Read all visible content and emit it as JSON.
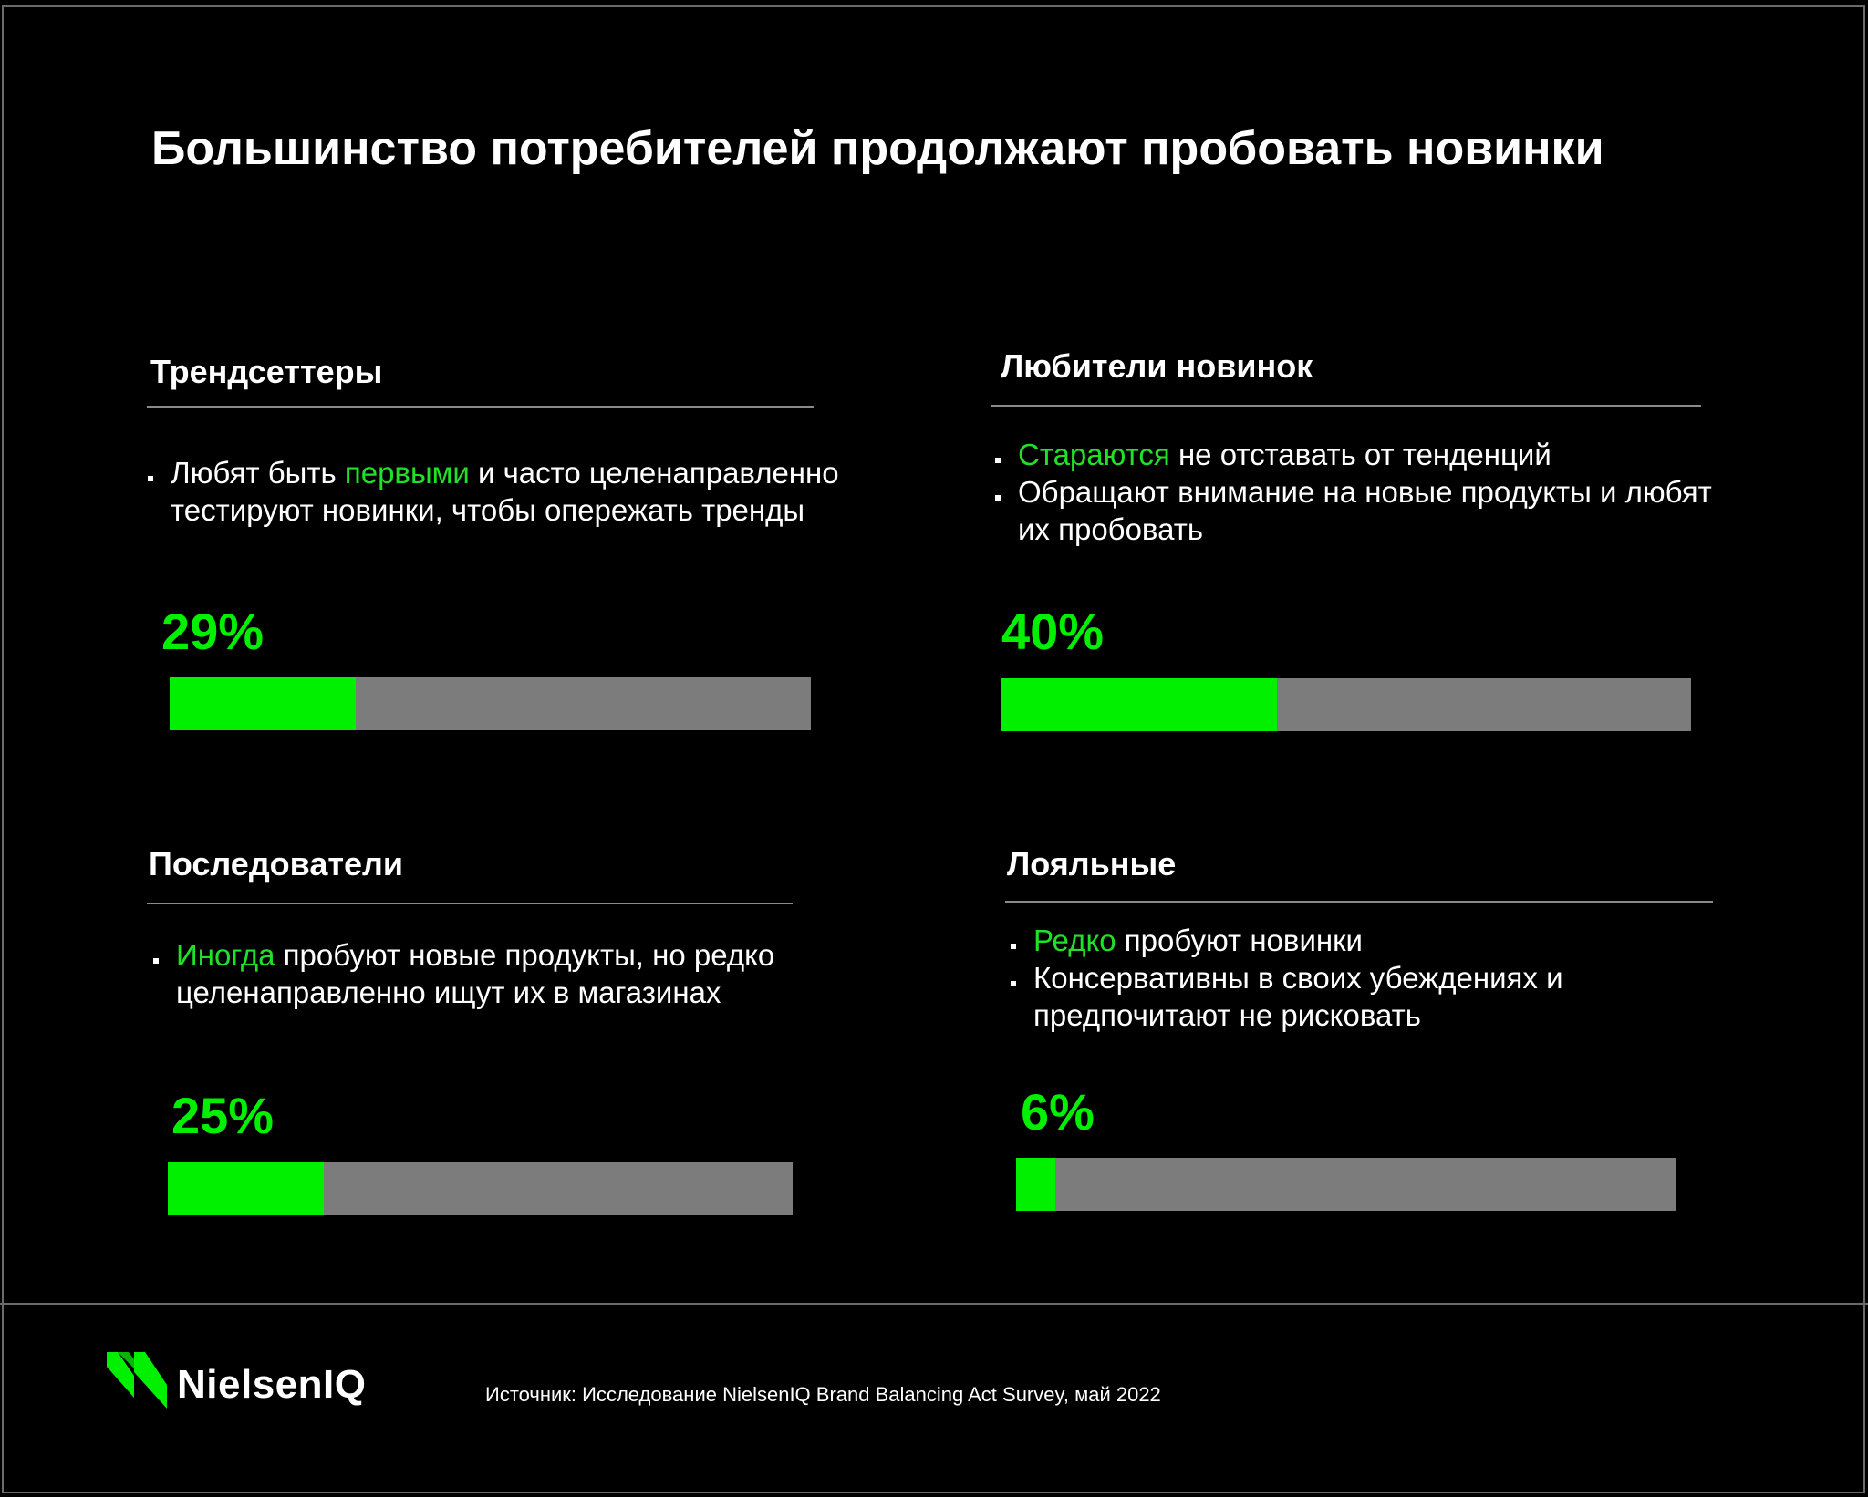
{
  "title": "Большинство потребителей продолжают пробовать новинки",
  "colors": {
    "accent": "#00f000",
    "track": "#7c7c7c",
    "background": "#000000"
  },
  "segments": [
    {
      "heading": "Трендсеттеры",
      "bullets": [
        {
          "pre": "",
          "highlight": "",
          "lead": "Любят быть ",
          "accent": "первыми",
          "post": " и часто целенаправленно тестируют новинки, чтобы опережать тренды"
        }
      ],
      "percent_label": "29%",
      "share": 0.29
    },
    {
      "heading": "Любители новинок",
      "bullets": [
        {
          "lead": "",
          "accent": "Стараются",
          "post": " не отставать от тенденций"
        },
        {
          "lead": "Обращают внимание на новые продукты и любят их пробовать",
          "accent": "",
          "post": ""
        }
      ],
      "percent_label": "40%",
      "share": 0.4
    },
    {
      "heading": "Последователи",
      "bullets": [
        {
          "lead": "",
          "accent": "Иногда",
          "post": " пробуют новые продукты, но редко целенаправленно ищут их в магазинах"
        }
      ],
      "percent_label": "25%",
      "share": 0.25
    },
    {
      "heading": "Лояльные",
      "bullets": [
        {
          "lead": "",
          "accent": "Редко",
          "post": " пробуют новинки"
        },
        {
          "lead": "Консервативны в своих убеждениях и предпочитают не рисковать",
          "accent": "",
          "post": ""
        }
      ],
      "percent_label": "6%",
      "share": 0.06
    }
  ],
  "logo": {
    "text": "NielsenIQ",
    "icon": "nielseniq-logo-icon"
  },
  "source": "Источник: Исследование NielsenIQ Brand Balancing Act Survey, май 2022"
}
